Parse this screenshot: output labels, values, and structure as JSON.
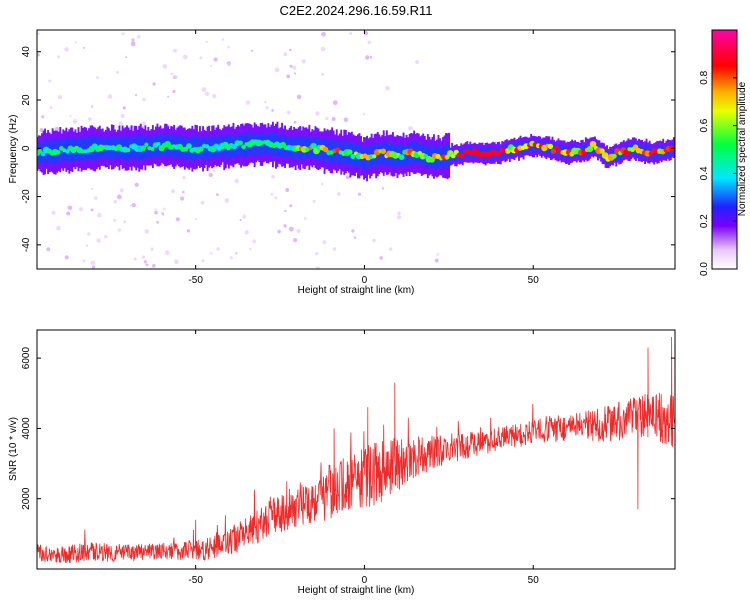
{
  "title": "C2E2.2024.296.16.59.R11",
  "colors": {
    "snr_line": "#ee2a2a",
    "axis": "#000000"
  },
  "chart_data": [
    {
      "type": "heatmap",
      "xlabel": "Height of straight line (km)",
      "ylabel": "Frequency (Hz)",
      "xlim": [
        -97,
        92
      ],
      "ylim": [
        -50,
        49
      ],
      "xticks": [
        -50,
        0,
        50
      ],
      "yticks": [
        -40,
        -20,
        0,
        20,
        40
      ],
      "colorbar": {
        "label": "Normalized spectral amplitude",
        "range": [
          0.0,
          1.0
        ],
        "ticks": [
          "0.0",
          "0.2",
          "0.4",
          "0.6",
          "0.8"
        ],
        "tick_values": [
          0.0,
          0.2,
          0.4,
          0.6,
          0.8
        ],
        "colormap": "rainbow (white-violet-blue-cyan-green-yellow-red-magenta)"
      },
      "ridge": {
        "x": [
          -97,
          -90,
          -80,
          -70,
          -60,
          -50,
          -40,
          -30,
          -20,
          -15,
          -10,
          -5,
          0,
          5,
          10,
          15,
          20,
          25,
          30,
          40,
          45,
          50,
          55,
          60,
          65,
          68,
          72,
          75,
          80,
          85,
          92
        ],
        "y": [
          -2,
          -1,
          0,
          0,
          1,
          0,
          1,
          2,
          0,
          0,
          -1,
          -2,
          -4,
          -2,
          -3,
          -2,
          -4,
          -3,
          -2,
          -2,
          0,
          1,
          0,
          -2,
          -1,
          1,
          -4,
          -2,
          0,
          -2,
          0
        ]
      }
    },
    {
      "type": "line",
      "xlabel": "Height of straight line (km)",
      "ylabel": "SNR (10 * v/v)",
      "xlim": [
        -97,
        92
      ],
      "ylim": [
        0,
        6800
      ],
      "xticks": [
        -50,
        0,
        50
      ],
      "yticks": [
        2000,
        4000,
        6000
      ],
      "series": [
        {
          "x": [
            -97,
            -90,
            -80,
            -70,
            -60,
            -50,
            -45,
            -40,
            -35,
            -30,
            -25,
            -20,
            -15,
            -10,
            -5,
            0,
            5,
            10,
            15,
            20,
            25,
            30,
            35,
            40,
            45,
            50,
            55,
            60,
            65,
            70,
            75,
            80,
            85,
            90,
            92
          ],
          "y": [
            450,
            400,
            500,
            450,
            500,
            550,
            600,
            800,
            1000,
            1300,
            1600,
            1800,
            2000,
            2200,
            2400,
            2600,
            2800,
            3000,
            3200,
            3300,
            3400,
            3500,
            3600,
            3700,
            3800,
            3900,
            4000,
            4000,
            4050,
            4100,
            4200,
            4300,
            4400,
            4300,
            4200
          ],
          "noise": [
            250,
            250,
            280,
            250,
            250,
            300,
            350,
            400,
            450,
            500,
            550,
            600,
            700,
            800,
            800,
            900,
            900,
            800,
            600,
            500,
            450,
            400,
            350,
            350,
            350,
            350,
            400,
            400,
            450,
            500,
            550,
            600,
            700,
            800,
            800
          ]
        }
      ],
      "spikes": [
        {
          "x": -50,
          "y": 1400
        },
        {
          "x": -23,
          "y": 2500
        },
        {
          "x": -9,
          "y": 4000
        },
        {
          "x": 1,
          "y": 4600
        },
        {
          "x": 9,
          "y": 5300
        },
        {
          "x": 13,
          "y": 4300
        },
        {
          "x": 84,
          "y": 6300
        },
        {
          "x": 91,
          "y": 6600
        },
        {
          "x": 81,
          "y": 1700
        }
      ]
    }
  ]
}
